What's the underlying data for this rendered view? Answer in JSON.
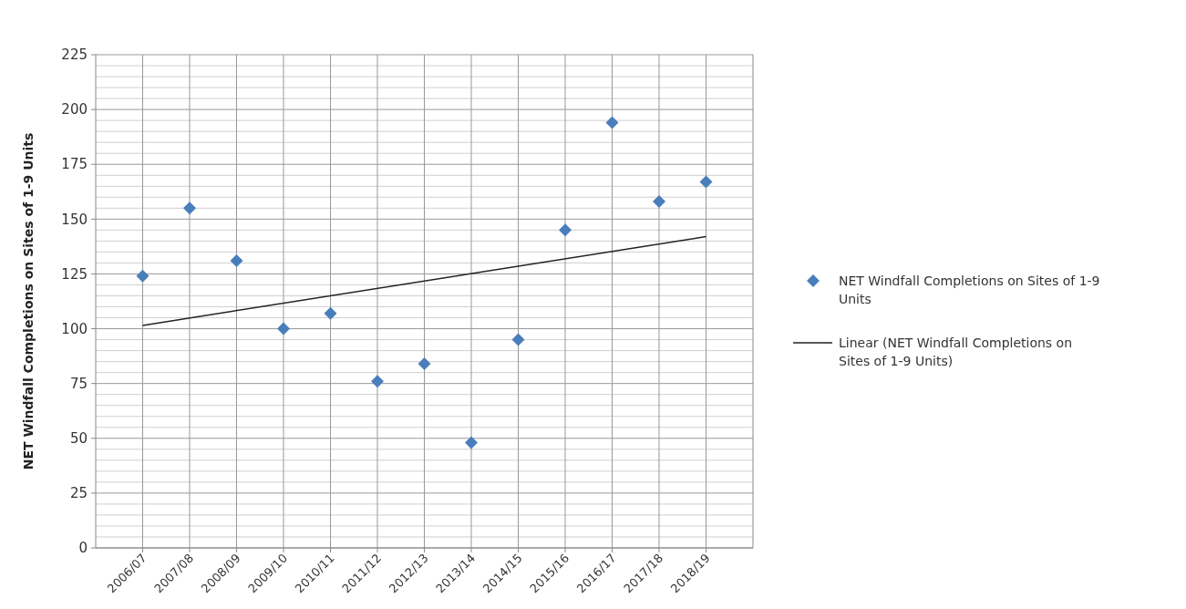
{
  "chart_data": {
    "type": "scatter",
    "ylabel": "NET Windfall Completions on Sites of 1-9 Units",
    "categories": [
      "2006/07",
      "2007/08",
      "2008/09",
      "2009/10",
      "2010/11",
      "2011/12",
      "2012/13",
      "2013/14",
      "2014/15",
      "2015/16",
      "2016/17",
      "2017/18",
      "2018/19"
    ],
    "series": [
      {
        "name": "NET Windfall Completions on Sites of 1-9 Units",
        "color": "#4a7ebb",
        "marker": "diamond",
        "values": [
          124,
          155,
          131,
          100,
          107,
          76,
          84,
          48,
          95,
          145,
          194,
          158,
          167
        ]
      },
      {
        "name": "Linear (NET Windfall Completions on Sites of 1-9 Units)",
        "type": "line",
        "color": "#222222",
        "marker": "none",
        "line_style": "solid",
        "x": [
          "2006/07",
          "2018/19"
        ],
        "values": [
          101.5,
          142
        ]
      }
    ],
    "ylim": [
      0,
      225
    ],
    "yticks": [
      0,
      25,
      50,
      75,
      100,
      125,
      150,
      175,
      200,
      225
    ],
    "grid": true,
    "legend": "right"
  }
}
